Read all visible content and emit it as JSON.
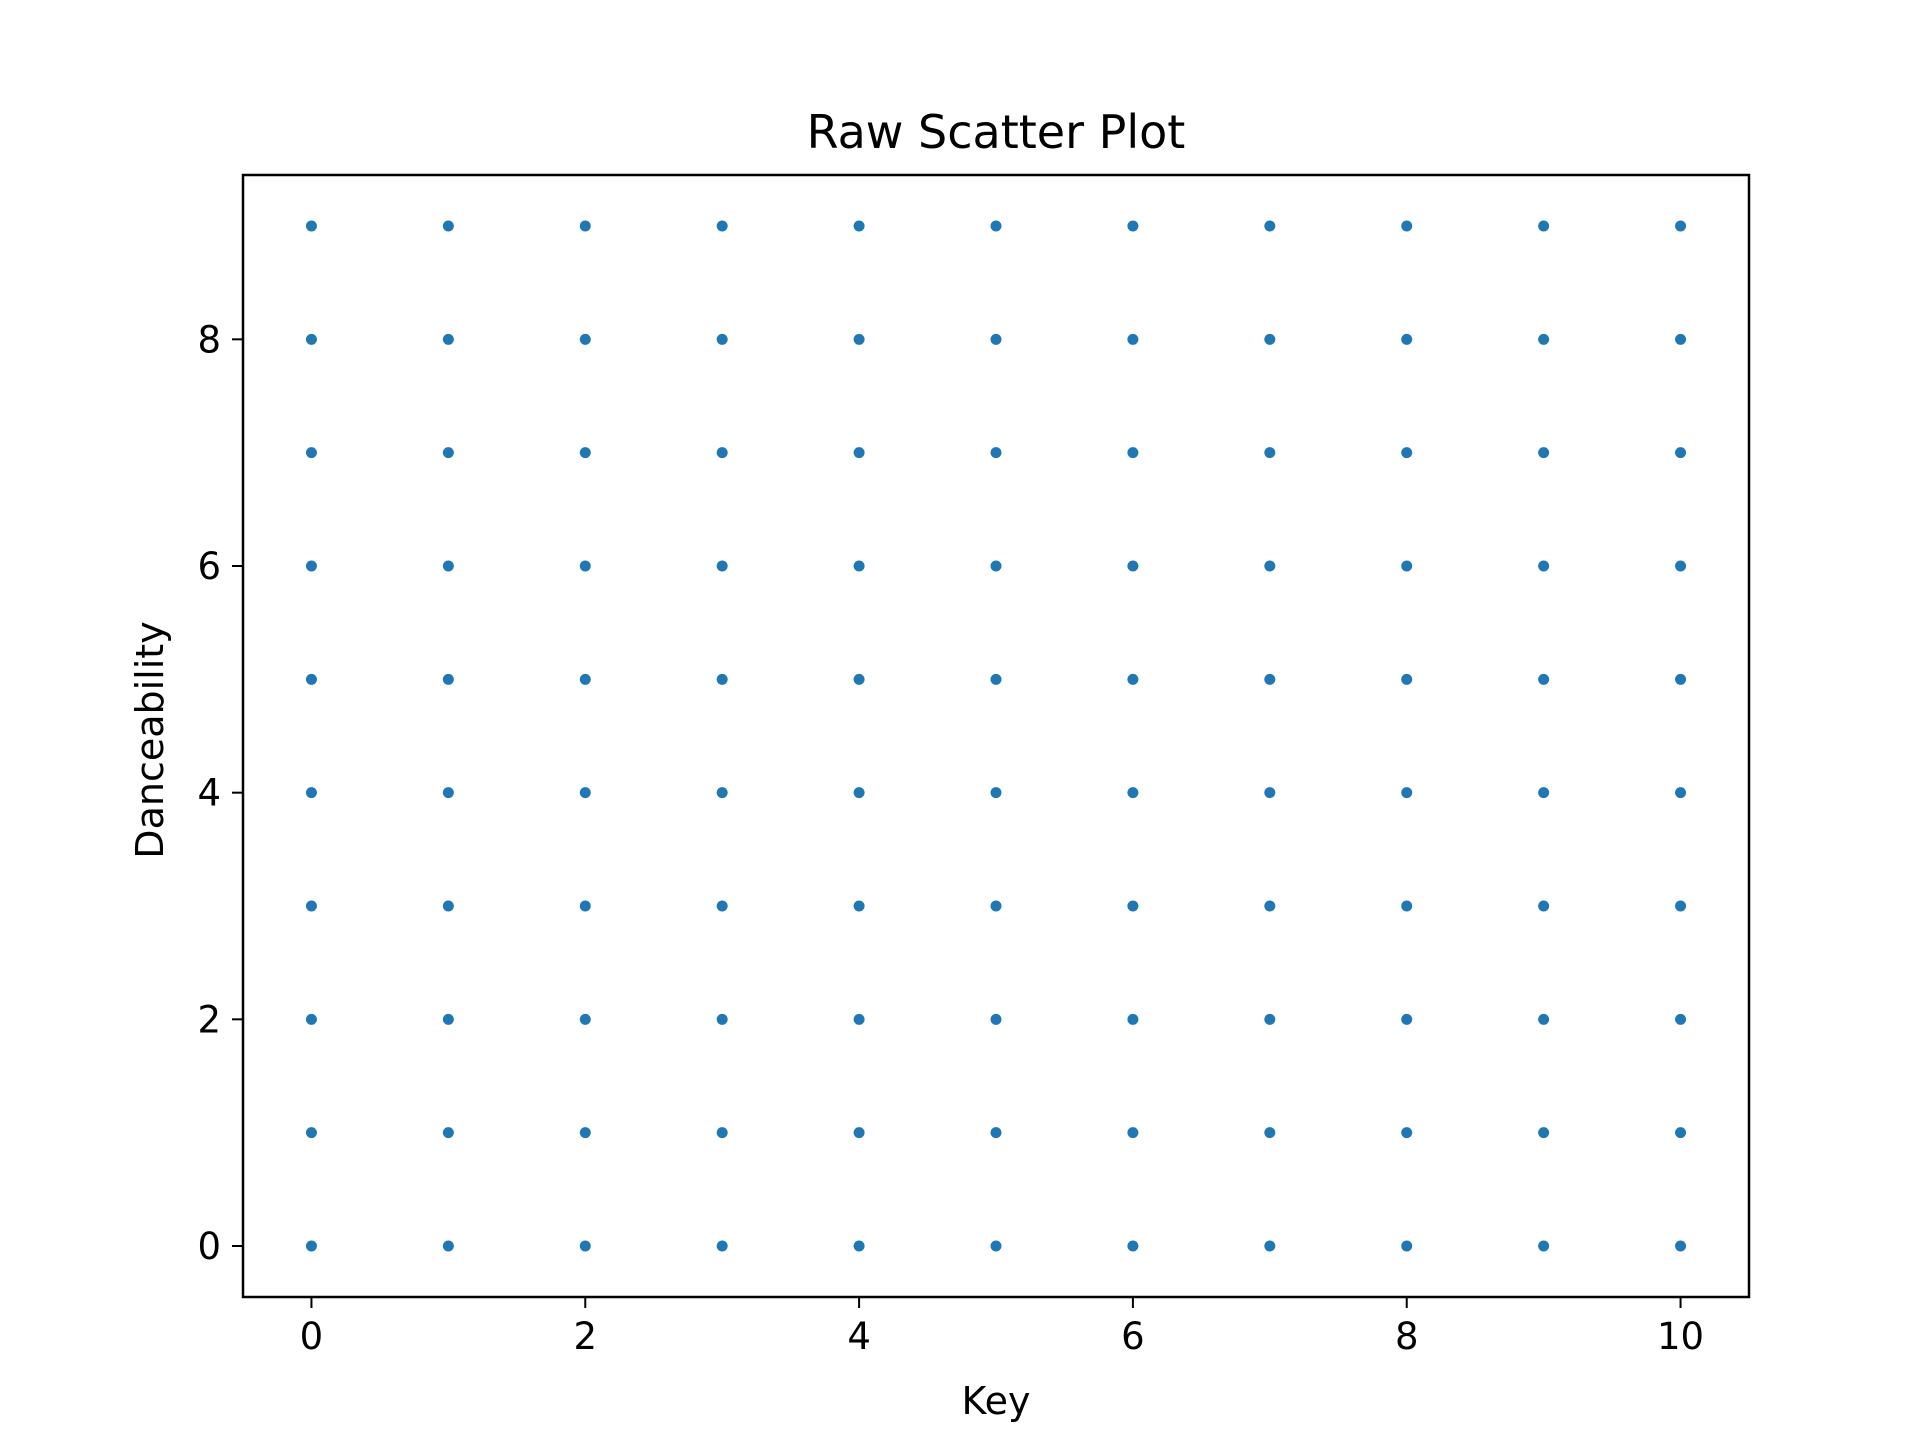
{
  "chart_data": {
    "type": "scatter",
    "title": "Raw Scatter Plot",
    "xlabel": "Key",
    "ylabel": "Danceability",
    "xlim": [
      -0.5,
      10.5
    ],
    "ylim": [
      -0.45,
      9.45
    ],
    "x_ticks": [
      0,
      2,
      4,
      6,
      8,
      10
    ],
    "y_ticks": [
      0,
      2,
      4,
      6,
      8
    ],
    "grid": false,
    "marker_color": "#1f77b4",
    "series": [
      {
        "points": [
          [
            0,
            0
          ],
          [
            0,
            1
          ],
          [
            0,
            2
          ],
          [
            0,
            3
          ],
          [
            0,
            4
          ],
          [
            0,
            5
          ],
          [
            0,
            6
          ],
          [
            0,
            7
          ],
          [
            0,
            8
          ],
          [
            0,
            9
          ],
          [
            1,
            0
          ],
          [
            1,
            1
          ],
          [
            1,
            2
          ],
          [
            1,
            3
          ],
          [
            1,
            4
          ],
          [
            1,
            5
          ],
          [
            1,
            6
          ],
          [
            1,
            7
          ],
          [
            1,
            8
          ],
          [
            1,
            9
          ],
          [
            2,
            0
          ],
          [
            2,
            1
          ],
          [
            2,
            2
          ],
          [
            2,
            3
          ],
          [
            2,
            4
          ],
          [
            2,
            5
          ],
          [
            2,
            6
          ],
          [
            2,
            7
          ],
          [
            2,
            8
          ],
          [
            2,
            9
          ],
          [
            3,
            0
          ],
          [
            3,
            1
          ],
          [
            3,
            2
          ],
          [
            3,
            3
          ],
          [
            3,
            4
          ],
          [
            3,
            5
          ],
          [
            3,
            6
          ],
          [
            3,
            7
          ],
          [
            3,
            8
          ],
          [
            3,
            9
          ],
          [
            4,
            0
          ],
          [
            4,
            1
          ],
          [
            4,
            2
          ],
          [
            4,
            3
          ],
          [
            4,
            4
          ],
          [
            4,
            5
          ],
          [
            4,
            6
          ],
          [
            4,
            7
          ],
          [
            4,
            8
          ],
          [
            4,
            9
          ],
          [
            5,
            0
          ],
          [
            5,
            1
          ],
          [
            5,
            2
          ],
          [
            5,
            3
          ],
          [
            5,
            4
          ],
          [
            5,
            5
          ],
          [
            5,
            6
          ],
          [
            5,
            7
          ],
          [
            5,
            8
          ],
          [
            5,
            9
          ],
          [
            6,
            0
          ],
          [
            6,
            1
          ],
          [
            6,
            2
          ],
          [
            6,
            3
          ],
          [
            6,
            4
          ],
          [
            6,
            5
          ],
          [
            6,
            6
          ],
          [
            6,
            7
          ],
          [
            6,
            8
          ],
          [
            6,
            9
          ],
          [
            7,
            0
          ],
          [
            7,
            1
          ],
          [
            7,
            2
          ],
          [
            7,
            3
          ],
          [
            7,
            4
          ],
          [
            7,
            5
          ],
          [
            7,
            6
          ],
          [
            7,
            7
          ],
          [
            7,
            8
          ],
          [
            7,
            9
          ],
          [
            8,
            0
          ],
          [
            8,
            1
          ],
          [
            8,
            2
          ],
          [
            8,
            3
          ],
          [
            8,
            4
          ],
          [
            8,
            5
          ],
          [
            8,
            6
          ],
          [
            8,
            7
          ],
          [
            8,
            8
          ],
          [
            8,
            9
          ],
          [
            9,
            0
          ],
          [
            9,
            1
          ],
          [
            9,
            2
          ],
          [
            9,
            3
          ],
          [
            9,
            4
          ],
          [
            9,
            5
          ],
          [
            9,
            6
          ],
          [
            9,
            7
          ],
          [
            9,
            8
          ],
          [
            9,
            9
          ],
          [
            10,
            0
          ],
          [
            10,
            1
          ],
          [
            10,
            2
          ],
          [
            10,
            3
          ],
          [
            10,
            4
          ],
          [
            10,
            5
          ],
          [
            10,
            6
          ],
          [
            10,
            7
          ],
          [
            10,
            8
          ],
          [
            10,
            9
          ]
        ]
      }
    ]
  }
}
